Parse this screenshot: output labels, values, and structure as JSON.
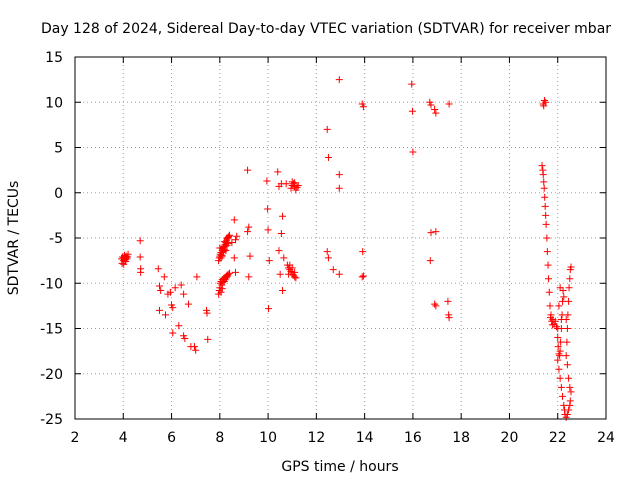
{
  "chart_data": {
    "type": "scatter",
    "title": "Day 128 of 2024, Sidereal Day-to-day VTEC variation (SDTVAR) for receiver mbar",
    "xlabel": "GPS time / hours",
    "ylabel": "SDTVAR / TECUs",
    "xlim": [
      2,
      24
    ],
    "ylim": [
      -25,
      15
    ],
    "xticks": [
      2,
      4,
      6,
      8,
      10,
      12,
      14,
      16,
      18,
      20,
      22,
      24
    ],
    "yticks": [
      -25,
      -20,
      -15,
      -10,
      -5,
      0,
      5,
      10,
      15
    ],
    "grid": true,
    "marker": "+",
    "color": "#ff0000",
    "series": [
      {
        "name": "SDTVAR",
        "points": [
          [
            3.93,
            -7.3
          ],
          [
            3.97,
            -7.1
          ],
          [
            4.0,
            -7.5
          ],
          [
            4.03,
            -7.2
          ],
          [
            4.05,
            -6.9
          ],
          [
            4.08,
            -7.4
          ],
          [
            4.1,
            -7.6
          ],
          [
            4.12,
            -7.0
          ],
          [
            4.15,
            -7.3
          ],
          [
            4.18,
            -7.1
          ],
          [
            4.2,
            -6.8
          ],
          [
            3.95,
            -7.8
          ],
          [
            4.02,
            -7.9
          ],
          [
            4.1,
            -7.2
          ],
          [
            4.7,
            -5.3
          ],
          [
            4.7,
            -7.1
          ],
          [
            4.72,
            -8.4
          ],
          [
            4.72,
            -8.8
          ],
          [
            5.45,
            -8.4
          ],
          [
            5.5,
            -10.3
          ],
          [
            5.55,
            -10.8
          ],
          [
            5.5,
            -13.0
          ],
          [
            5.75,
            -13.5
          ],
          [
            5.7,
            -9.3
          ],
          [
            5.85,
            -11.2
          ],
          [
            5.95,
            -11.0
          ],
          [
            6.0,
            -12.4
          ],
          [
            6.05,
            -12.7
          ],
          [
            6.05,
            -15.5
          ],
          [
            6.15,
            -10.5
          ],
          [
            6.3,
            -14.7
          ],
          [
            6.4,
            -10.2
          ],
          [
            6.5,
            -15.8
          ],
          [
            6.5,
            -11.2
          ],
          [
            6.55,
            -16.1
          ],
          [
            6.7,
            -12.3
          ],
          [
            6.8,
            -17.0
          ],
          [
            6.95,
            -17.0
          ],
          [
            7.0,
            -17.4
          ],
          [
            7.05,
            -9.3
          ],
          [
            7.45,
            -13.0
          ],
          [
            7.47,
            -13.3
          ],
          [
            7.5,
            -16.2
          ],
          [
            7.95,
            -7.5
          ],
          [
            7.98,
            -7.2
          ],
          [
            8.0,
            -7.0
          ],
          [
            8.02,
            -6.8
          ],
          [
            8.05,
            -6.6
          ],
          [
            8.08,
            -6.9
          ],
          [
            8.1,
            -6.4
          ],
          [
            8.12,
            -6.2
          ],
          [
            8.15,
            -6.0
          ],
          [
            8.18,
            -5.9
          ],
          [
            8.2,
            -6.3
          ],
          [
            8.22,
            -5.7
          ],
          [
            8.25,
            -5.5
          ],
          [
            8.28,
            -5.3
          ],
          [
            8.3,
            -5.1
          ],
          [
            8.32,
            -5.0
          ],
          [
            8.35,
            -4.9
          ],
          [
            8.38,
            -4.8
          ],
          [
            8.4,
            -4.7
          ],
          [
            8.0,
            -6.1
          ],
          [
            8.05,
            -7.2
          ],
          [
            8.1,
            -7.0
          ],
          [
            8.15,
            -6.5
          ],
          [
            8.2,
            -5.4
          ],
          [
            8.3,
            -5.8
          ],
          [
            8.35,
            -5.6
          ],
          [
            8.25,
            -6.4
          ],
          [
            7.95,
            -11.2
          ],
          [
            7.98,
            -10.8
          ],
          [
            8.0,
            -10.5
          ],
          [
            8.02,
            -10.0
          ],
          [
            8.05,
            -9.8
          ],
          [
            8.08,
            -10.2
          ],
          [
            8.1,
            -9.6
          ],
          [
            8.12,
            -9.9
          ],
          [
            8.15,
            -9.5
          ],
          [
            8.18,
            -9.8
          ],
          [
            8.2,
            -9.4
          ],
          [
            8.22,
            -9.6
          ],
          [
            8.25,
            -9.3
          ],
          [
            8.28,
            -9.4
          ],
          [
            8.3,
            -9.1
          ],
          [
            8.32,
            -9.2
          ],
          [
            8.35,
            -9.0
          ],
          [
            8.4,
            -8.9
          ],
          [
            8.05,
            -11.0
          ],
          [
            8.1,
            -10.6
          ],
          [
            8.5,
            -5.5
          ],
          [
            8.6,
            -3.0
          ],
          [
            8.65,
            -5.2
          ],
          [
            8.6,
            -7.2
          ],
          [
            8.65,
            -8.8
          ],
          [
            8.7,
            -4.8
          ],
          [
            9.15,
            2.5
          ],
          [
            9.2,
            -3.8
          ],
          [
            9.15,
            -4.3
          ],
          [
            9.2,
            -9.3
          ],
          [
            9.25,
            -7.0
          ],
          [
            9.95,
            1.3
          ],
          [
            9.98,
            -1.8
          ],
          [
            10.0,
            -4.1
          ],
          [
            10.02,
            -12.8
          ],
          [
            10.05,
            -7.5
          ],
          [
            10.4,
            2.3
          ],
          [
            10.45,
            0.7
          ],
          [
            10.55,
            1.0
          ],
          [
            10.55,
            -4.5
          ],
          [
            10.45,
            -6.4
          ],
          [
            10.65,
            -7.2
          ],
          [
            10.6,
            -2.6
          ],
          [
            10.6,
            -10.8
          ],
          [
            10.5,
            -9.0
          ],
          [
            10.75,
            1.0
          ],
          [
            10.8,
            -8.0
          ],
          [
            10.85,
            -8.3
          ],
          [
            10.9,
            -8.5
          ],
          [
            10.95,
            -8.7
          ],
          [
            11.0,
            -9.0
          ],
          [
            11.05,
            -9.1
          ],
          [
            11.1,
            -9.3
          ],
          [
            10.9,
            -8.0
          ],
          [
            11.0,
            -8.3
          ],
          [
            11.1,
            -8.8
          ],
          [
            11.15,
            -9.4
          ],
          [
            10.85,
            -9.0
          ],
          [
            10.95,
            0.5
          ],
          [
            11.0,
            0.8
          ],
          [
            11.05,
            1.0
          ],
          [
            11.1,
            0.7
          ],
          [
            11.15,
            0.3
          ],
          [
            11.2,
            0.6
          ],
          [
            11.25,
            0.8
          ],
          [
            11.0,
            1.2
          ],
          [
            11.1,
            1.1
          ],
          [
            12.45,
            7.0
          ],
          [
            12.5,
            3.9
          ],
          [
            12.45,
            -6.5
          ],
          [
            12.5,
            -7.2
          ],
          [
            12.7,
            -8.5
          ],
          [
            12.95,
            12.5
          ],
          [
            12.95,
            2.0
          ],
          [
            12.95,
            0.5
          ],
          [
            12.95,
            -9.0
          ],
          [
            13.9,
            9.8
          ],
          [
            13.95,
            9.5
          ],
          [
            13.92,
            -6.5
          ],
          [
            13.95,
            -9.2
          ],
          [
            13.9,
            -9.3
          ],
          [
            15.95,
            12.0
          ],
          [
            15.98,
            9.0
          ],
          [
            16.0,
            4.5
          ],
          [
            16.7,
            10.0
          ],
          [
            16.75,
            9.7
          ],
          [
            16.75,
            -4.4
          ],
          [
            16.72,
            -7.5
          ],
          [
            16.9,
            9.2
          ],
          [
            16.95,
            -4.3
          ],
          [
            16.95,
            8.8
          ],
          [
            16.9,
            -12.3
          ],
          [
            16.95,
            -12.5
          ],
          [
            17.5,
            9.8
          ],
          [
            17.45,
            -12.0
          ],
          [
            17.48,
            -13.5
          ],
          [
            17.5,
            -13.8
          ],
          [
            21.4,
            9.8
          ],
          [
            21.45,
            10.2
          ],
          [
            21.5,
            10.0
          ],
          [
            21.42,
            9.6
          ],
          [
            21.35,
            3.0
          ],
          [
            21.38,
            2.5
          ],
          [
            21.4,
            2.0
          ],
          [
            21.42,
            1.2
          ],
          [
            21.44,
            0.5
          ],
          [
            21.46,
            -0.5
          ],
          [
            21.48,
            -1.5
          ],
          [
            21.5,
            -2.5
          ],
          [
            21.52,
            -3.5
          ],
          [
            21.55,
            -5.0
          ],
          [
            21.57,
            -6.5
          ],
          [
            21.6,
            -8.0
          ],
          [
            21.62,
            -9.5
          ],
          [
            21.65,
            -11.0
          ],
          [
            21.68,
            -12.5
          ],
          [
            21.7,
            -13.8
          ],
          [
            21.75,
            -14.2
          ],
          [
            21.8,
            -14.0
          ],
          [
            21.85,
            -14.5
          ],
          [
            21.9,
            -14.2
          ],
          [
            21.95,
            -14.8
          ],
          [
            22.0,
            -15.0
          ],
          [
            21.72,
            -13.5
          ],
          [
            21.78,
            -14.6
          ],
          [
            22.0,
            -16.0
          ],
          [
            22.02,
            -17.0
          ],
          [
            22.05,
            -17.8
          ],
          [
            22.08,
            -18.0
          ],
          [
            22.1,
            -17.5
          ],
          [
            22.12,
            -16.5
          ],
          [
            22.15,
            -15.0
          ],
          [
            22.18,
            -13.5
          ],
          [
            22.2,
            -12.0
          ],
          [
            22.22,
            -10.8
          ],
          [
            22.25,
            -11.5
          ],
          [
            22.1,
            -10.5
          ],
          [
            22.05,
            -12.5
          ],
          [
            22.15,
            -14.0
          ],
          [
            22.0,
            -18.5
          ],
          [
            22.05,
            -19.5
          ],
          [
            22.1,
            -20.5
          ],
          [
            22.15,
            -21.5
          ],
          [
            22.2,
            -22.5
          ],
          [
            22.25,
            -23.5
          ],
          [
            22.28,
            -24.0
          ],
          [
            22.3,
            -24.5
          ],
          [
            22.35,
            -24.8
          ],
          [
            22.4,
            -24.5
          ],
          [
            22.45,
            -24.0
          ],
          [
            22.5,
            -23.5
          ],
          [
            22.52,
            -23.0
          ],
          [
            22.55,
            -22.0
          ],
          [
            22.35,
            -18.0
          ],
          [
            22.38,
            -16.5
          ],
          [
            22.4,
            -15.0
          ],
          [
            22.42,
            -13.5
          ],
          [
            22.45,
            -12.0
          ],
          [
            22.47,
            -10.5
          ],
          [
            22.5,
            -9.5
          ],
          [
            22.52,
            -8.5
          ],
          [
            22.55,
            -8.2
          ],
          [
            22.4,
            -19.0
          ],
          [
            22.45,
            -20.5
          ],
          [
            22.5,
            -21.5
          ],
          [
            22.35,
            -14.0
          ]
        ]
      }
    ]
  }
}
